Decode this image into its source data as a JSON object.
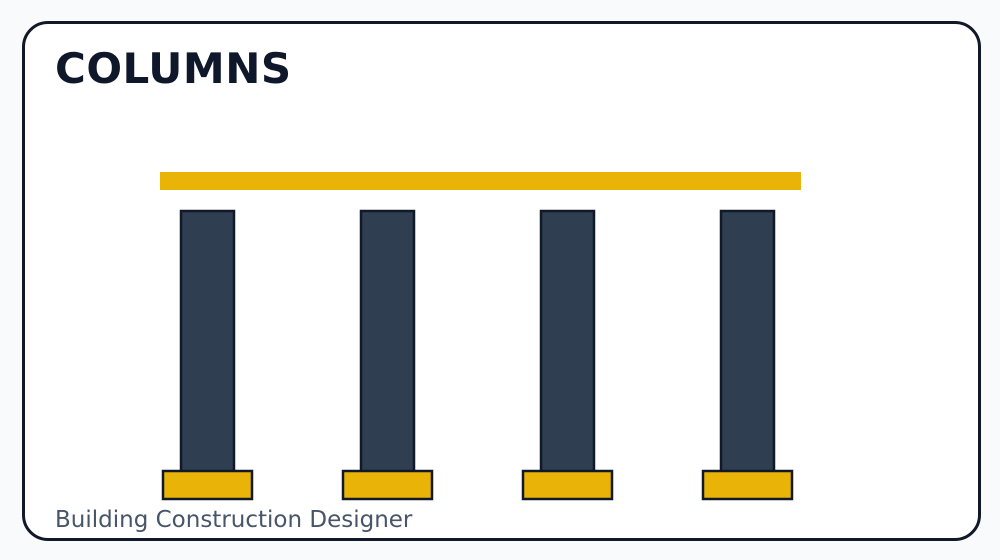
{
  "header": {
    "title": "COLUMNS"
  },
  "footer": {
    "subtitle": "Building Construction Designer"
  },
  "diagram": {
    "column_count": 4,
    "colors": {
      "beam": "#eab308",
      "column": "#2f3e51",
      "footing": "#eab308",
      "outline": "#111827",
      "background": "#f8fafc",
      "card": "#ffffff",
      "title_text": "#0f172a",
      "subtitle_text": "#475569"
    }
  }
}
